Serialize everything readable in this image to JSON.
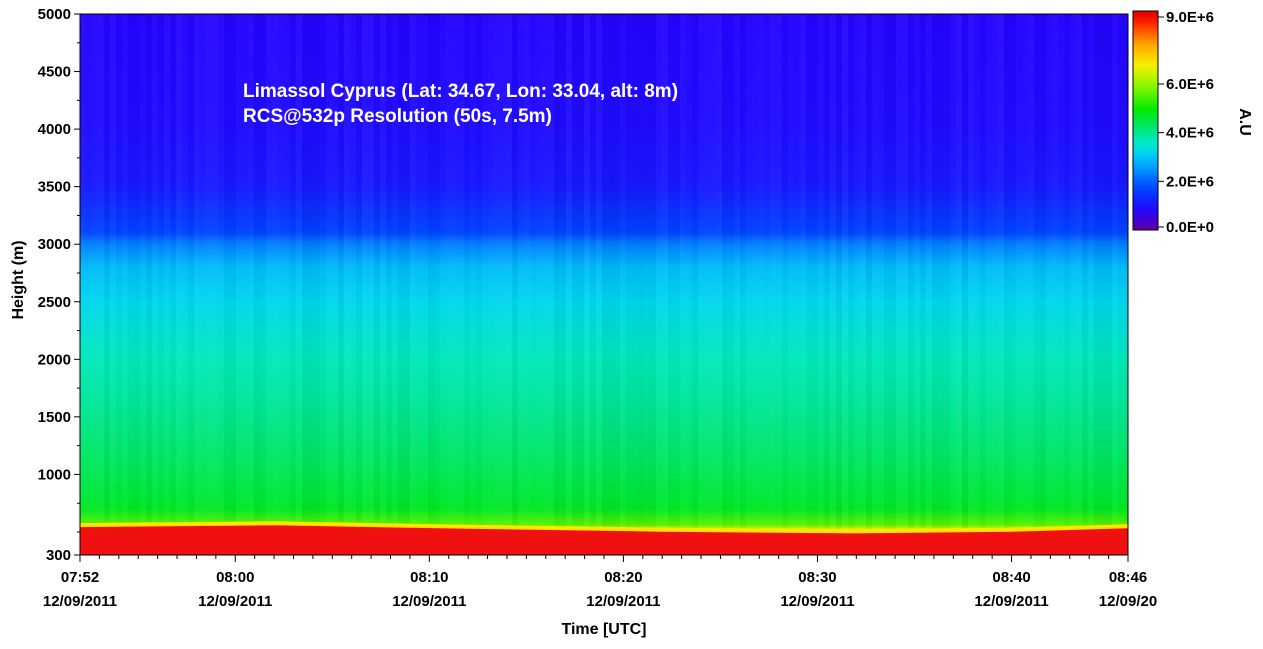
{
  "chart_data": {
    "type": "heatmap",
    "title_lines": [
      "Limassol Cyprus (Lat: 34.67, Lon: 33.04, alt: 8m)",
      "RCS@532p Resolution (50s, 7.5m)"
    ],
    "xlabel": "Time [UTC]",
    "ylabel": "Height (m)",
    "colorbar_label": "A.U",
    "x_range": [
      "07:52",
      "08:46"
    ],
    "y_range": [
      300,
      5000
    ],
    "x_ticks": [
      {
        "time": "07:52",
        "date": "12/09/2011",
        "minutes": 0
      },
      {
        "time": "08:00",
        "date": "12/09/2011",
        "minutes": 8
      },
      {
        "time": "08:10",
        "date": "12/09/2011",
        "minutes": 18
      },
      {
        "time": "08:20",
        "date": "12/09/2011",
        "minutes": 28
      },
      {
        "time": "08:30",
        "date": "12/09/2011",
        "minutes": 38
      },
      {
        "time": "08:40",
        "date": "12/09/2011",
        "minutes": 48
      },
      {
        "time": "08:46",
        "date": "12/09/20",
        "minutes": 54
      }
    ],
    "y_ticks": [
      {
        "value": 300,
        "label": "300"
      },
      {
        "value": 1000,
        "label": "1000"
      },
      {
        "value": 1500,
        "label": "1500"
      },
      {
        "value": 2000,
        "label": "2000"
      },
      {
        "value": 2500,
        "label": "2500"
      },
      {
        "value": 3000,
        "label": "3000"
      },
      {
        "value": 3500,
        "label": "3500"
      },
      {
        "value": 4000,
        "label": "4000"
      },
      {
        "value": 4500,
        "label": "4500"
      },
      {
        "value": 5000,
        "label": "5000"
      }
    ],
    "colorbar": {
      "range": [
        0,
        9000000
      ],
      "ticks": [
        {
          "value": 0,
          "label": "0.0E+0"
        },
        {
          "value": 2000000,
          "label": "2.0E+6"
        },
        {
          "value": 4000000,
          "label": "4.0E+6"
        },
        {
          "value": 6000000,
          "label": "6.0E+6"
        },
        {
          "value": 9000000,
          "label": "9.0E+6"
        }
      ]
    },
    "profile": [
      {
        "height": 300,
        "value": 8800000
      },
      {
        "height": 420,
        "value": 8500000
      },
      {
        "height": 480,
        "value": 8000000
      },
      {
        "height": 520,
        "value": 6800000
      },
      {
        "height": 560,
        "value": 5600000
      },
      {
        "height": 700,
        "value": 4700000
      },
      {
        "height": 1000,
        "value": 4400000
      },
      {
        "height": 1500,
        "value": 4000000
      },
      {
        "height": 2000,
        "value": 3700000
      },
      {
        "height": 2500,
        "value": 3200000
      },
      {
        "height": 2800,
        "value": 2900000
      },
      {
        "height": 3000,
        "value": 2300000
      },
      {
        "height": 3100,
        "value": 1700000
      },
      {
        "height": 3500,
        "value": 1100000
      },
      {
        "height": 4000,
        "value": 900000
      },
      {
        "height": 5000,
        "value": 800000
      }
    ],
    "aerosol_layer_top": [
      {
        "minutes": 0,
        "height": 560
      },
      {
        "minutes": 10,
        "height": 575
      },
      {
        "minutes": 20,
        "height": 545
      },
      {
        "minutes": 30,
        "height": 520
      },
      {
        "minutes": 40,
        "height": 505
      },
      {
        "minutes": 48,
        "height": 520
      },
      {
        "minutes": 54,
        "height": 550
      }
    ]
  }
}
